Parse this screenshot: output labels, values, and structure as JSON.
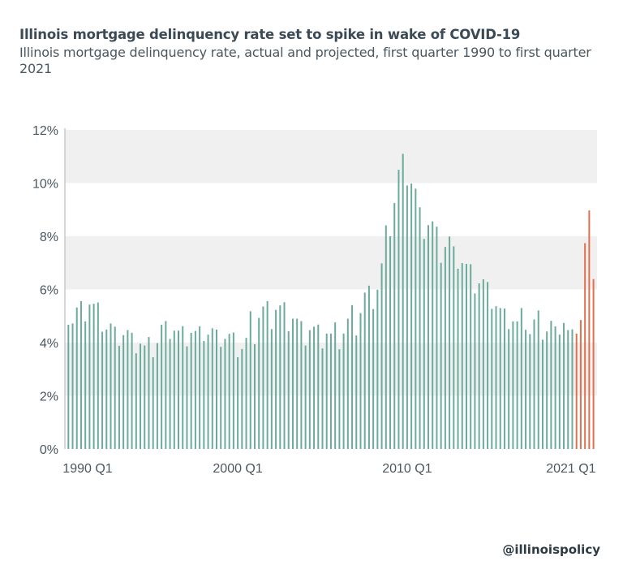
{
  "title": "Illinois mortgage delinquency rate set to spike in wake of COVID-19",
  "subtitle": "Illinois mortgage delinquency rate, actual and projected, first quarter 1990 to first quarter 2021",
  "footer": "@illinoispolicy",
  "chart_data": {
    "type": "bar",
    "title": "Illinois mortgage delinquency rate set to spike in wake of COVID-19",
    "subtitle": "Illinois mortgage delinquency rate, actual and projected, first quarter 1990 to first quarter 2021",
    "xlabel": "",
    "ylabel": "",
    "ylim": [
      0,
      12
    ],
    "y_ticks": [
      "0%",
      "2%",
      "4%",
      "6%",
      "8%",
      "10%",
      "12%"
    ],
    "x_tick_labels": [
      "1990 Q1",
      "2000 Q1",
      "2010 Q1",
      "2021 Q1"
    ],
    "x_range": [
      "1990 Q1",
      "2021 Q1"
    ],
    "grid": "alternating horizontal bands",
    "legend": "none",
    "series": [
      {
        "color": "#6aab9c",
        "start": "1990 Q1",
        "values": [
          4.67,
          4.72,
          5.32,
          5.56,
          4.8,
          5.43,
          5.46,
          5.51,
          4.41,
          4.49,
          4.72,
          4.6,
          3.88,
          4.28,
          4.47,
          4.37,
          3.6,
          3.96,
          3.89,
          4.21,
          3.45,
          3.98,
          4.67,
          4.81,
          4.14,
          4.45,
          4.45,
          4.62,
          3.86,
          4.37,
          4.44,
          4.61,
          4.06,
          4.3,
          4.54,
          4.49,
          3.84,
          4.14,
          4.33,
          4.38,
          3.45,
          3.76,
          4.18,
          5.18,
          3.94,
          4.93,
          5.36,
          5.56,
          4.51,
          5.23,
          5.4,
          5.52,
          4.43,
          4.9,
          4.9,
          4.81,
          3.89,
          4.47,
          4.6,
          4.68,
          3.78,
          4.34,
          4.34,
          4.76,
          3.75,
          4.34,
          4.9,
          5.41,
          4.27,
          5.11,
          5.88,
          6.14,
          5.26,
          5.99,
          6.98,
          8.41,
          8.0,
          9.25,
          10.5,
          11.1,
          9.91,
          9.98,
          9.79,
          9.09,
          7.9,
          8.42,
          8.56,
          8.36,
          7.0,
          7.6,
          7.99,
          7.62,
          6.78,
          6.99,
          6.96,
          6.95,
          5.85,
          6.23,
          6.38,
          6.28,
          5.27,
          5.37,
          5.3,
          5.28,
          4.51,
          4.8,
          4.8,
          5.3,
          4.48,
          4.32,
          4.87,
          5.21,
          4.11,
          4.42,
          4.82,
          4.61,
          4.3,
          4.74,
          4.47,
          4.5
        ]
      },
      {
        "color": "#e0704f",
        "start": "2020 Q1",
        "values": [
          4.34,
          4.85,
          7.74,
          8.97,
          6.39
        ]
      }
    ]
  }
}
